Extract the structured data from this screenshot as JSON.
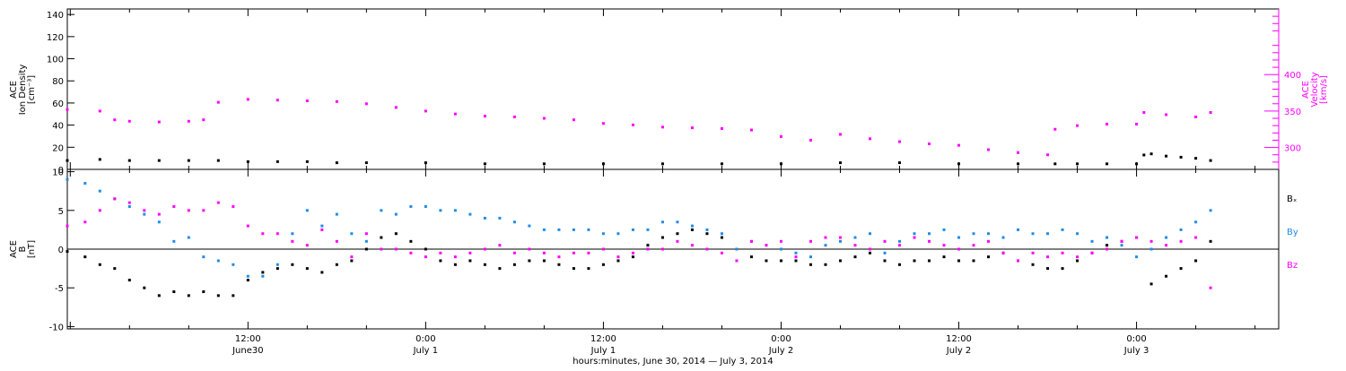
{
  "xaxis": {
    "title": "hours:minutes, June 30, 2014 — July  3, 2014",
    "ticks": [
      {
        "t": 12,
        "top": "12:00",
        "bottom": "June30"
      },
      {
        "t": 24,
        "top": "0:00",
        "bottom": "July 1"
      },
      {
        "t": 36,
        "top": "12:00",
        "bottom": "July 1"
      },
      {
        "t": 48,
        "top": "0:00",
        "bottom": "July 2"
      },
      {
        "t": 60,
        "top": "12:00",
        "bottom": "July 2"
      },
      {
        "t": 72,
        "top": "0:00",
        "bottom": "July 3"
      }
    ],
    "range_hours": [
      -0.2,
      81.6
    ]
  },
  "colors": {
    "black": "#000000",
    "magenta": "#ff00ff",
    "blue": "#1f8ce6",
    "axis": "#000000"
  },
  "chart_data": [
    {
      "type": "scatter",
      "panel": "top",
      "ylabel_left": [
        "ACE",
        "Ion Density",
        "[cm⁻³]"
      ],
      "ylabel_right": [
        "ACE",
        "Velocity",
        "[km/s]"
      ],
      "ylim_left": [
        0,
        145
      ],
      "yticks_left": [
        0,
        20,
        40,
        60,
        80,
        100,
        120,
        140
      ],
      "ylim_right": [
        270,
        490
      ],
      "yticks_right": [
        300,
        350,
        400
      ],
      "series": [
        {
          "axis": "left",
          "color": "black",
          "x": [
            -0.2,
            2,
            4,
            6,
            8,
            10,
            12,
            14,
            16,
            18,
            20,
            24,
            28,
            32,
            36,
            40,
            44,
            48,
            52,
            56,
            60,
            64,
            66.5,
            68,
            70,
            72,
            72.5,
            73,
            74,
            75,
            76,
            77
          ],
          "y": [
            8,
            9,
            8,
            8,
            8,
            8,
            7,
            7,
            7,
            6,
            6,
            6,
            5,
            5,
            5,
            5,
            5,
            5,
            6,
            6,
            5,
            5,
            5,
            5,
            5,
            5,
            13,
            14,
            12,
            11,
            10,
            8
          ]
        },
        {
          "axis": "right",
          "color": "magenta",
          "x": [
            -0.2,
            2,
            3,
            4,
            6,
            8,
            9,
            10,
            12,
            14,
            16,
            18,
            20,
            22,
            24,
            26,
            28,
            30,
            32,
            34,
            36,
            38,
            40,
            42,
            44,
            46,
            48,
            50,
            52,
            54,
            56,
            58,
            60,
            62,
            64,
            66,
            66.5,
            68,
            70,
            72,
            72.5,
            74,
            76,
            77
          ],
          "y": [
            352,
            350,
            338,
            336,
            335,
            336,
            338,
            362,
            366,
            365,
            364,
            363,
            360,
            355,
            350,
            346,
            343,
            342,
            340,
            338,
            333,
            331,
            328,
            327,
            326,
            324,
            315,
            310,
            318,
            312,
            308,
            305,
            303,
            297,
            293,
            290,
            325,
            330,
            332,
            332,
            348,
            345,
            342,
            348
          ]
        }
      ]
    },
    {
      "type": "scatter",
      "panel": "bottom",
      "ylabel_left": [
        "ACE",
        "B",
        "[nT]"
      ],
      "ylim": [
        -10.3,
        10.3
      ],
      "yticks": [
        -10,
        -5,
        0,
        5,
        10
      ],
      "zero_line": true,
      "series": [
        {
          "name": "Bₓ",
          "color": "black",
          "x": [
            -0.2,
            1,
            2,
            3,
            4,
            5,
            6,
            7,
            8,
            9,
            10,
            11,
            12,
            13,
            14,
            15,
            16,
            17,
            18,
            19,
            20,
            21,
            22,
            23,
            24,
            25,
            26,
            27,
            28,
            29,
            30,
            31,
            32,
            33,
            34,
            35,
            36,
            37,
            38,
            39,
            40,
            41,
            42,
            43,
            44,
            45,
            46,
            47,
            48,
            49,
            50,
            51,
            52,
            53,
            54,
            55,
            56,
            57,
            58,
            59,
            60,
            61,
            62,
            63,
            64,
            65,
            66,
            67,
            68,
            69,
            70,
            71,
            72,
            73,
            74,
            75,
            76,
            77
          ],
          "y": [
            -0.3,
            -1,
            -2,
            -2.5,
            -4,
            -5,
            -6,
            -5.5,
            -6,
            -5.5,
            -6,
            -6,
            -4,
            -3,
            -2.5,
            -2,
            -2.5,
            -3,
            -2,
            -1.5,
            0,
            1.5,
            2,
            1,
            0,
            -1.5,
            -2,
            -1.5,
            -2,
            -2.5,
            -2,
            -1.5,
            -1.5,
            -2,
            -2.5,
            -2.5,
            -2,
            -1.5,
            -1,
            0.5,
            1.5,
            2,
            2.5,
            2,
            1.5,
            0,
            -1,
            -1.5,
            -1.5,
            -1.5,
            -2,
            -2,
            -1.5,
            -1,
            -0.5,
            -1.5,
            -2,
            -1.5,
            -1.5,
            -1,
            -1.5,
            -1.5,
            -1,
            -0.5,
            -1.5,
            -2,
            -2.5,
            -2.5,
            -1.5,
            -0.5,
            0.5,
            1,
            1.5,
            -4.5,
            -3.5,
            -2.5,
            -1.5,
            1
          ]
        },
        {
          "name": "By",
          "color": "blue",
          "x": [
            -0.2,
            1,
            2,
            3,
            4,
            5,
            6,
            7,
            8,
            9,
            10,
            11,
            12,
            13,
            14,
            15,
            16,
            17,
            18,
            19,
            20,
            21,
            22,
            23,
            24,
            25,
            26,
            27,
            28,
            29,
            30,
            31,
            32,
            33,
            34,
            35,
            36,
            37,
            38,
            39,
            40,
            41,
            42,
            43,
            44,
            45,
            46,
            47,
            48,
            49,
            50,
            51,
            52,
            53,
            54,
            55,
            56,
            57,
            58,
            59,
            60,
            61,
            62,
            63,
            64,
            65,
            66,
            67,
            68,
            69,
            70,
            71,
            72,
            73,
            74,
            75,
            76,
            77
          ],
          "y": [
            9,
            8.5,
            7.5,
            6.5,
            5.5,
            4.5,
            3.5,
            1,
            1.5,
            -1,
            -1.5,
            -2,
            -3.5,
            -3.5,
            -2,
            2,
            5,
            3,
            4.5,
            2,
            1,
            5,
            4.5,
            5.5,
            5.5,
            5,
            5,
            4.5,
            4,
            4,
            3.5,
            3,
            2.5,
            2.5,
            2.5,
            2.5,
            2,
            2,
            2.5,
            2.5,
            3.5,
            3.5,
            3,
            2.5,
            2,
            0,
            1,
            0.5,
            0,
            -0.5,
            -1,
            0.5,
            1,
            1.5,
            2,
            -0.5,
            1,
            2,
            2,
            2.5,
            1.5,
            2,
            2,
            1.5,
            2.5,
            2,
            2,
            2.5,
            2,
            1,
            1.5,
            0.5,
            -1,
            0,
            1.5,
            2.5,
            3.5,
            5
          ]
        },
        {
          "name": "Bz",
          "color": "magenta",
          "x": [
            -0.2,
            1,
            2,
            3,
            4,
            5,
            6,
            7,
            8,
            9,
            10,
            11,
            12,
            13,
            14,
            15,
            16,
            17,
            18,
            19,
            20,
            21,
            22,
            23,
            24,
            25,
            26,
            27,
            28,
            29,
            30,
            31,
            32,
            33,
            34,
            35,
            36,
            37,
            38,
            39,
            40,
            41,
            42,
            43,
            44,
            45,
            46,
            47,
            48,
            49,
            50,
            51,
            52,
            53,
            54,
            55,
            56,
            57,
            58,
            59,
            60,
            61,
            62,
            63,
            64,
            65,
            66,
            67,
            68,
            69,
            70,
            71,
            72,
            73,
            74,
            75,
            76,
            77
          ],
          "y": [
            3,
            3.5,
            5,
            6.5,
            6,
            5,
            4.5,
            5.5,
            5,
            5,
            6,
            5.5,
            3,
            2,
            2,
            1,
            0.5,
            2.5,
            1,
            -1,
            2,
            0,
            0,
            -0.5,
            -1,
            -0.5,
            -1,
            -0.5,
            0,
            0.5,
            -0.5,
            0,
            -0.5,
            -1,
            -0.5,
            -0.5,
            0,
            -1,
            -0.5,
            0,
            0,
            1,
            0.5,
            0,
            -0.5,
            -1.5,
            1,
            0.5,
            1,
            -1,
            1,
            1.5,
            1.5,
            0.5,
            0,
            1,
            0.5,
            1.5,
            1,
            0.5,
            0,
            0.5,
            1,
            -0.5,
            -1.5,
            -0.5,
            -1,
            -0.5,
            -1,
            -0.5,
            0,
            1,
            1.5,
            1,
            0.5,
            1,
            1.5,
            -5
          ]
        }
      ]
    }
  ]
}
